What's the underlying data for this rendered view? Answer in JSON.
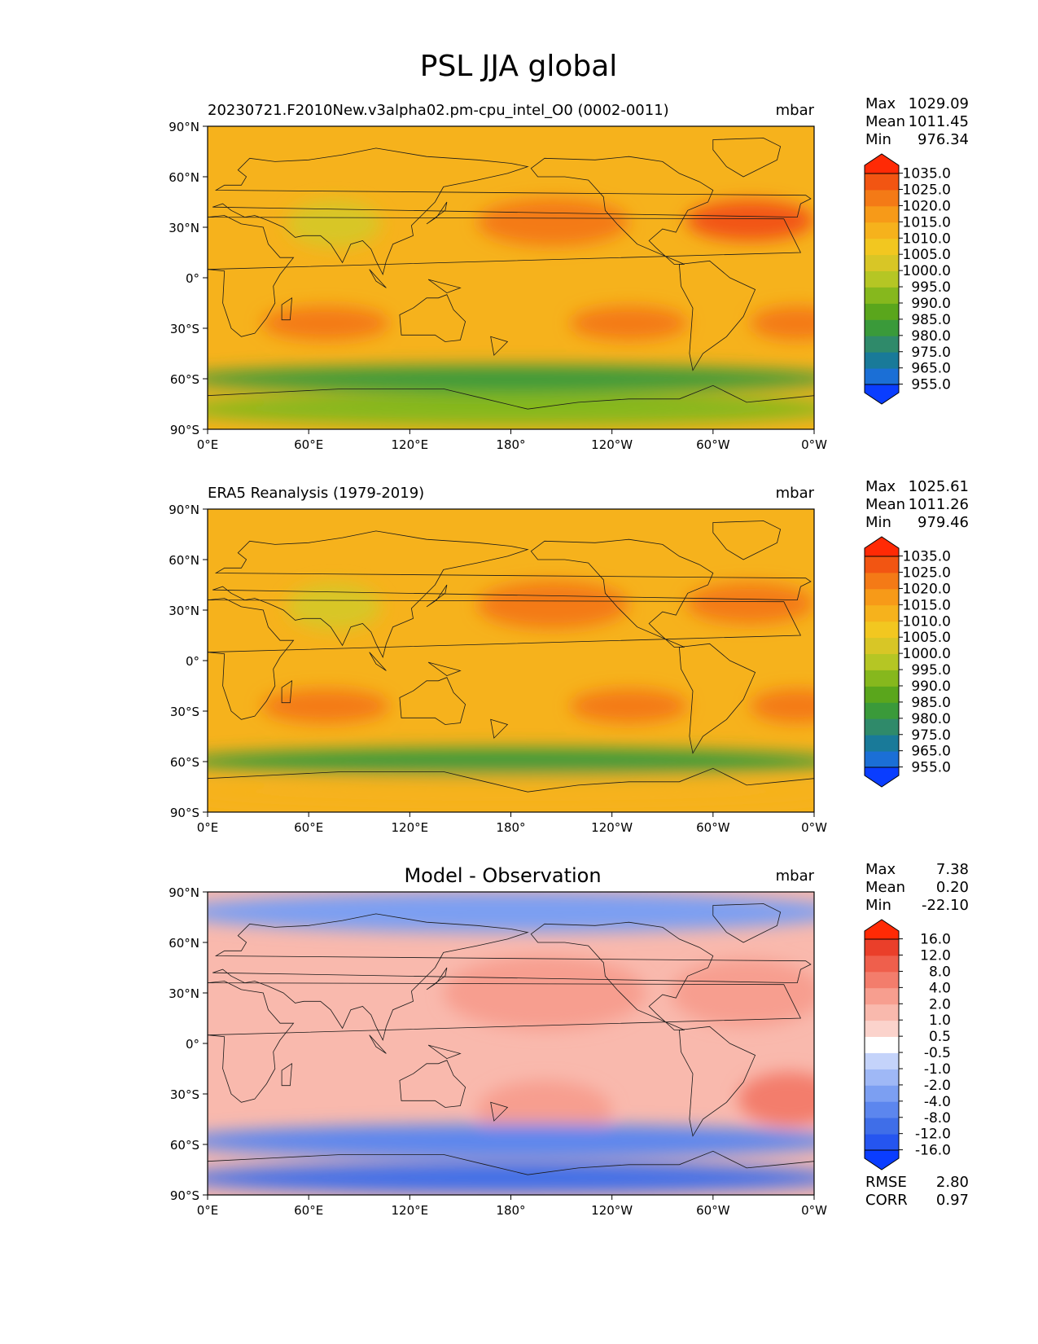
{
  "figure": {
    "title": "PSL JJA global"
  },
  "chart_data": [
    {
      "type": "heatmap",
      "kind": "map",
      "title": "20230721.F2010New.v3alpha02.pm-cpu_intel_O0 (0002-0011)",
      "units": "mbar",
      "stats": [
        {
          "label": "Max",
          "value": "1029.09"
        },
        {
          "label": "Mean",
          "value": "1011.45"
        },
        {
          "label": "Min",
          "value": "976.34"
        }
      ],
      "colorbar": {
        "labels": [
          "955.0",
          "965.0",
          "975.0",
          "980.0",
          "985.0",
          "990.0",
          "995.0",
          "1000.0",
          "1005.0",
          "1010.0",
          "1015.0",
          "1020.0",
          "1025.0",
          "1035.0"
        ],
        "colors": [
          "#0a3dff",
          "#1b6fd6",
          "#197a99",
          "#2f8a6a",
          "#3a9a3a",
          "#5aa61c",
          "#86b81d",
          "#b5c624",
          "#d8c626",
          "#f2c720",
          "#f6b21c",
          "#f79a18",
          "#f47a16",
          "#f25512",
          "#ff2a05"
        ]
      },
      "x_ticks": [
        "0°E",
        "60°E",
        "120°E",
        "180°",
        "120°W",
        "60°W",
        "0°W"
      ],
      "y_ticks": [
        "90°N",
        "60°N",
        "30°N",
        "0°",
        "30°S",
        "60°S",
        "90°S"
      ],
      "fields": [
        {
          "name": "global-base",
          "value": 1012
        },
        {
          "name": "north-pacific-high",
          "value": 1024
        },
        {
          "name": "azores-high",
          "value": 1025
        },
        {
          "name": "south-indian-high",
          "value": 1023
        },
        {
          "name": "south-atlantic-high",
          "value": 1022
        },
        {
          "name": "south-pacific-high",
          "value": 1020
        },
        {
          "name": "asian-low",
          "value": 1002
        },
        {
          "name": "southern-ocean-trough",
          "value": 982
        },
        {
          "name": "antarctic",
          "value": 993
        }
      ]
    },
    {
      "type": "heatmap",
      "kind": "map",
      "title": "ERA5 Reanalysis (1979-2019)",
      "units": "mbar",
      "stats": [
        {
          "label": "Max",
          "value": "1025.61"
        },
        {
          "label": "Mean",
          "value": "1011.26"
        },
        {
          "label": "Min",
          "value": "979.46"
        }
      ],
      "colorbar": {
        "labels": [
          "955.0",
          "965.0",
          "975.0",
          "980.0",
          "985.0",
          "990.0",
          "995.0",
          "1000.0",
          "1005.0",
          "1010.0",
          "1015.0",
          "1020.0",
          "1025.0",
          "1035.0"
        ],
        "colors": [
          "#0a3dff",
          "#1b6fd6",
          "#197a99",
          "#2f8a6a",
          "#3a9a3a",
          "#5aa61c",
          "#86b81d",
          "#b5c624",
          "#d8c626",
          "#f2c720",
          "#f6b21c",
          "#f79a18",
          "#f47a16",
          "#f25512",
          "#ff2a05"
        ]
      },
      "x_ticks": [
        "0°E",
        "60°E",
        "120°E",
        "180°",
        "120°W",
        "60°W",
        "0°W"
      ],
      "y_ticks": [
        "90°N",
        "60°N",
        "30°N",
        "0°",
        "30°S",
        "60°S",
        "90°S"
      ],
      "fields": [
        {
          "name": "global-base",
          "value": 1012
        },
        {
          "name": "north-pacific-high",
          "value": 1022
        },
        {
          "name": "azores-high",
          "value": 1022
        },
        {
          "name": "south-indian-high",
          "value": 1021
        },
        {
          "name": "south-atlantic-high",
          "value": 1021
        },
        {
          "name": "south-pacific-high",
          "value": 1020
        },
        {
          "name": "asian-low",
          "value": 1004
        },
        {
          "name": "southern-ocean-trough",
          "value": 984
        },
        {
          "name": "antarctic",
          "value": 1010
        }
      ]
    },
    {
      "type": "heatmap",
      "kind": "map",
      "title": "Model - Observation",
      "units": "mbar",
      "stats": [
        {
          "label": "Max",
          "value": "7.38"
        },
        {
          "label": "Mean",
          "value": "0.20"
        },
        {
          "label": "Min",
          "value": "-22.10"
        }
      ],
      "bottom_stats": [
        {
          "label": "RMSE",
          "value": "2.80"
        },
        {
          "label": "CORR",
          "value": "0.97"
        }
      ],
      "colorbar": {
        "labels": [
          "-16.0",
          "-12.0",
          "-8.0",
          "-4.0",
          "-2.0",
          "-1.0",
          "-0.5",
          "0.5",
          "1.0",
          "2.0",
          "4.0",
          "8.0",
          "12.0",
          "16.0"
        ],
        "colors": [
          "#0a3dff",
          "#2555f0",
          "#3f6ee8",
          "#5c86ee",
          "#7c9ff2",
          "#9fb8f6",
          "#c4d3fa",
          "#ffffff",
          "#fbd3cc",
          "#f9b9ad",
          "#f79e8f",
          "#f37d6c",
          "#ef5f4c",
          "#ea3f2a",
          "#ff2a05"
        ]
      },
      "x_ticks": [
        "0°E",
        "60°E",
        "120°E",
        "180°",
        "120°W",
        "60°W",
        "0°W"
      ],
      "y_ticks": [
        "90°N",
        "60°N",
        "30°N",
        "0°",
        "30°S",
        "60°S",
        "90°S"
      ],
      "fields": [
        {
          "name": "tropical-mean",
          "value": 1.5
        },
        {
          "name": "north-pacific-positive",
          "value": 2.5
        },
        {
          "name": "north-atlantic-positive",
          "value": 2.5
        },
        {
          "name": "south-atlantic-positive",
          "value": 4
        },
        {
          "name": "south-pacific-positive",
          "value": 3
        },
        {
          "name": "arctic-negative",
          "value": -2.5
        },
        {
          "name": "southern-ocean-negative",
          "value": -5
        },
        {
          "name": "antarctic-negative",
          "value": -12
        }
      ]
    }
  ]
}
